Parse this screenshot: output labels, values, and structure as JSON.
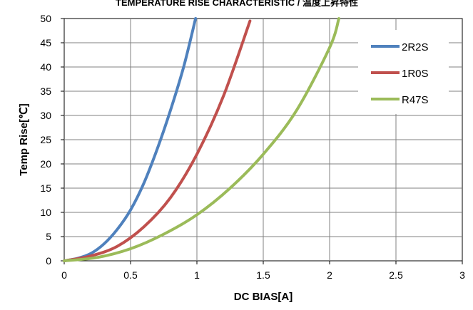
{
  "chart_data": {
    "type": "line",
    "title": "TEMPERATURE RISE CHARACTERISTIC / 温度上昇特性",
    "xlabel": "DC BIAS[A]",
    "ylabel": "Temp Rise[℃]",
    "xlim": [
      0,
      3
    ],
    "ylim": [
      0,
      50
    ],
    "xticks": [
      "0",
      "0.5",
      "1",
      "1.5",
      "2",
      "2.5",
      "3"
    ],
    "yticks": [
      "0",
      "5",
      "10",
      "15",
      "20",
      "25",
      "30",
      "35",
      "40",
      "45",
      "50"
    ],
    "grid": true,
    "legend_position": "top-right",
    "series": [
      {
        "name": "2R2S",
        "color": "#4F81BD",
        "points": [
          [
            0,
            0
          ],
          [
            0.1,
            0.5
          ],
          [
            0.2,
            1.5
          ],
          [
            0.3,
            3.5
          ],
          [
            0.4,
            6.5
          ],
          [
            0.5,
            10.5
          ],
          [
            0.6,
            16
          ],
          [
            0.7,
            23
          ],
          [
            0.8,
            31
          ],
          [
            0.9,
            40
          ],
          [
            0.99,
            50
          ]
        ]
      },
      {
        "name": "1R0S",
        "color": "#C0504D",
        "points": [
          [
            0,
            0
          ],
          [
            0.2,
            1
          ],
          [
            0.4,
            3
          ],
          [
            0.6,
            7
          ],
          [
            0.8,
            13
          ],
          [
            1.0,
            22
          ],
          [
            1.2,
            34
          ],
          [
            1.4,
            49.5
          ]
        ]
      },
      {
        "name": "R47S",
        "color": "#9BBB59",
        "points": [
          [
            0,
            0
          ],
          [
            0.25,
            0.7
          ],
          [
            0.5,
            2.5
          ],
          [
            0.75,
            5.5
          ],
          [
            1.0,
            9.5
          ],
          [
            1.25,
            15
          ],
          [
            1.5,
            22
          ],
          [
            1.75,
            31
          ],
          [
            2.0,
            44
          ],
          [
            2.07,
            50
          ]
        ]
      }
    ]
  }
}
